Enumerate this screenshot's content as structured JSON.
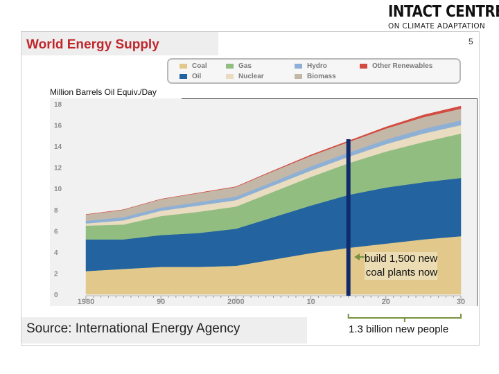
{
  "logo": {
    "line1": "INTACT CENTRE",
    "line2": "ON CLIMATE ADAPTATION"
  },
  "slide": {
    "title": "World Energy Supply",
    "page_number": "5",
    "source": "Source: International Energy Agency",
    "people_note": "1.3 billion new people"
  },
  "colors": {
    "coal": "#e2c98b",
    "oil": "#2364a0",
    "gas": "#92bd80",
    "nuclear": "#e9dcc0",
    "hydro": "#8fb0d5",
    "biomass": "#c3b7a8",
    "other_renewables": "#d34b40",
    "title_red": "#c0272d",
    "marker_line": "#102a6b",
    "annotation_green": "#76913f"
  },
  "chart_data": {
    "type": "area",
    "stacked": true,
    "ylabel": "Million Barrels Oil Equiv./Day",
    "ylim": [
      0,
      18
    ],
    "yticks": [
      "0",
      "2",
      "4",
      "6",
      "8",
      "10",
      "12",
      "14",
      "16",
      "18"
    ],
    "xlim": [
      1980,
      2030
    ],
    "xticks": [
      {
        "value": 1980,
        "label": "1980"
      },
      {
        "value": 1990,
        "label": "90"
      },
      {
        "value": 2000,
        "label": "2000"
      },
      {
        "value": 2010,
        "label": "10"
      },
      {
        "value": 2020,
        "label": "20"
      },
      {
        "value": 2030,
        "label": "30"
      }
    ],
    "legend": [
      "Coal",
      "Gas",
      "Hydro",
      "Other Renewables",
      "Oil",
      "Nuclear",
      "Biomass"
    ],
    "x": [
      1980,
      1985,
      1990,
      1995,
      2000,
      2005,
      2010,
      2015,
      2020,
      2025,
      2030
    ],
    "series": [
      {
        "key": "coal",
        "name": "Coal",
        "values": [
          2.2,
          2.4,
          2.6,
          2.6,
          2.7,
          3.3,
          3.9,
          4.4,
          4.8,
          5.2,
          5.5
        ]
      },
      {
        "key": "oil",
        "name": "Oil",
        "values": [
          3.0,
          2.8,
          3.0,
          3.2,
          3.5,
          4.0,
          4.5,
          5.0,
          5.3,
          5.4,
          5.5
        ]
      },
      {
        "key": "gas",
        "name": "Gas",
        "values": [
          1.3,
          1.4,
          1.8,
          2.0,
          2.1,
          2.4,
          2.7,
          3.0,
          3.4,
          3.8,
          4.2
        ]
      },
      {
        "key": "nuclear",
        "name": "Nuclear",
        "values": [
          0.2,
          0.4,
          0.5,
          0.6,
          0.6,
          0.6,
          0.6,
          0.6,
          0.7,
          0.8,
          0.8
        ]
      },
      {
        "key": "hydro",
        "name": "Hydro",
        "values": [
          0.25,
          0.3,
          0.3,
          0.32,
          0.35,
          0.35,
          0.4,
          0.4,
          0.42,
          0.45,
          0.45
        ]
      },
      {
        "key": "biomass",
        "name": "Biomass",
        "values": [
          0.6,
          0.7,
          0.8,
          0.85,
          0.9,
          1.0,
          1.0,
          1.0,
          1.05,
          1.1,
          1.1
        ]
      },
      {
        "key": "other_renewables",
        "name": "Other Renewables",
        "values": [
          0.0,
          0.0,
          0.0,
          0.02,
          0.03,
          0.05,
          0.08,
          0.1,
          0.15,
          0.2,
          0.25
        ]
      }
    ],
    "marker": {
      "x": 2015,
      "label_line1": "build 1,500 new",
      "label_line2": "coal plants now"
    },
    "bracket": {
      "from": 2015,
      "to": 2030
    }
  }
}
